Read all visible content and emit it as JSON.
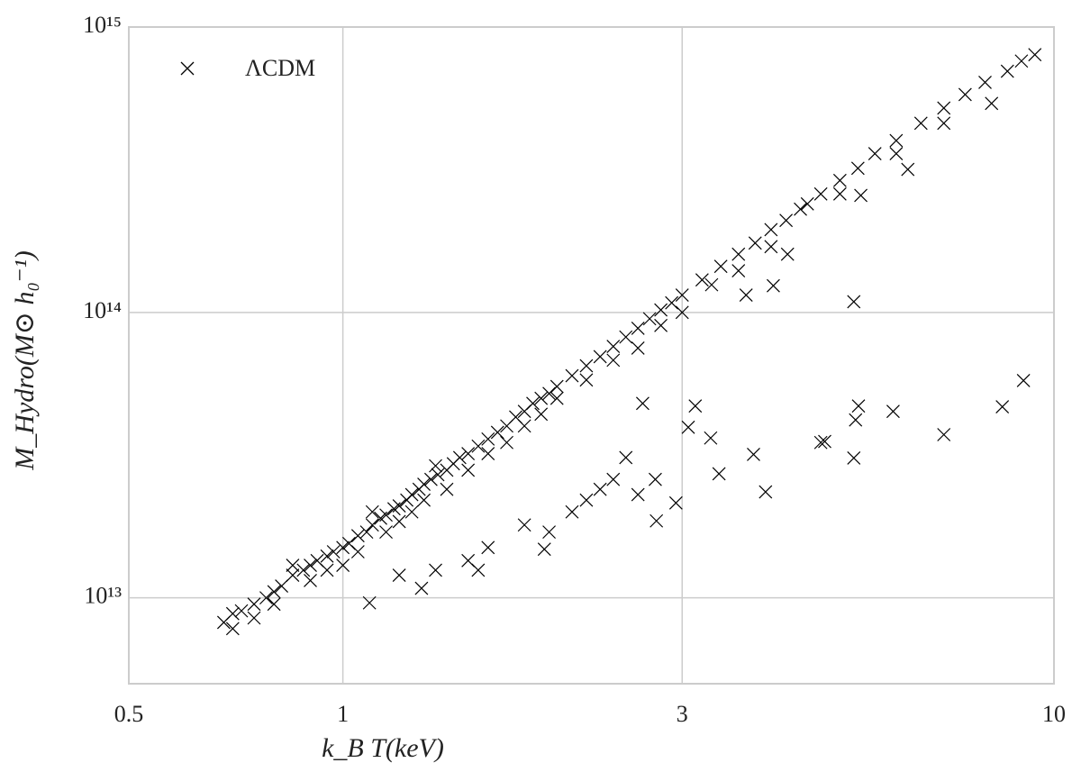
{
  "chart_data": {
    "type": "scatter",
    "x_label": "k_B T(keV)",
    "y_label": "M_Hydro(M⊙ h₀⁻¹)",
    "xscale": "log",
    "yscale": "log",
    "grid": true,
    "legend": "upper left",
    "xlim": [
      0.5,
      10
    ],
    "xticks": [
      0.5,
      1,
      3,
      10
    ],
    "ylim": [
      5000000000000.0,
      1000000000000000.0
    ],
    "yticks": [
      {
        "value": 10000000000000.0,
        "label": "10¹³"
      },
      {
        "value": 100000000000000.0,
        "label": "10¹⁴"
      },
      {
        "value": 1000000000000000.0,
        "label": "10¹⁵"
      }
    ],
    "series": [
      {
        "name": "ΛCDM",
        "color": "#000000",
        "x": [
          0.68,
          0.7,
          0.72,
          0.75,
          0.78,
          0.8,
          0.82,
          0.85,
          0.88,
          0.9,
          0.92,
          0.95,
          0.97,
          1.0,
          1.02,
          1.05,
          1.08,
          1.1,
          1.13,
          1.15,
          1.18,
          1.2,
          1.23,
          1.25,
          1.28,
          1.3,
          1.33,
          1.36,
          1.4,
          1.43,
          1.46,
          1.5,
          1.55,
          1.6,
          1.65,
          1.7,
          1.75,
          1.8,
          1.85,
          1.9,
          1.95,
          2.0,
          2.1,
          2.2,
          2.3,
          2.4,
          2.5,
          2.6,
          2.7,
          2.8,
          2.9,
          3.0,
          3.2,
          3.4,
          3.6,
          3.8,
          4.0,
          4.2,
          4.4,
          4.7,
          5.0,
          5.3,
          5.6,
          6.0,
          6.5,
          7.0,
          7.5,
          8.0,
          8.6,
          9.0,
          9.4,
          0.7,
          0.75,
          0.8,
          0.85,
          0.9,
          0.95,
          1.0,
          1.05,
          1.1,
          1.15,
          1.2,
          1.25,
          1.3,
          1.35,
          1.4,
          1.5,
          1.6,
          1.7,
          1.8,
          1.9,
          2.0,
          2.2,
          2.4,
          2.6,
          2.8,
          3.0,
          3.3,
          3.6,
          4.0,
          4.5,
          5.0,
          6.0,
          7.0,
          1.09,
          1.2,
          1.35,
          1.29,
          1.5,
          1.6,
          1.55,
          1.8,
          1.92,
          1.95,
          2.1,
          2.2,
          2.4,
          2.6,
          2.76,
          2.75,
          2.94,
          2.64,
          3.13,
          3.06,
          3.29,
          3.38,
          3.78,
          3.93,
          4.76,
          4.7,
          5.31,
          5.26,
          5.23,
          5.94,
          7.0,
          8.46,
          9.06,
          5.23,
          4.03,
          3.69,
          4.22,
          5.35,
          6.23,
          8.17,
          2.3,
          2.5
        ],
        "values": [
          8200000000000.0,
          8800000000000.0,
          9000000000000.0,
          9500000000000.0,
          10000000000000.0,
          10500000000000.0,
          11000000000000.0,
          12000000000000.0,
          12500000000000.0,
          13000000000000.0,
          13500000000000.0,
          14000000000000.0,
          14500000000000.0,
          15000000000000.0,
          15500000000000.0,
          16500000000000.0,
          17000000000000.0,
          18000000000000.0,
          19000000000000.0,
          19500000000000.0,
          20500000000000.0,
          21000000000000.0,
          22000000000000.0,
          23000000000000.0,
          24000000000000.0,
          25000000000000.0,
          26000000000000.0,
          27000000000000.0,
          28000000000000.0,
          29500000000000.0,
          31000000000000.0,
          32000000000000.0,
          34000000000000.0,
          36000000000000.0,
          38000000000000.0,
          40000000000000.0,
          43000000000000.0,
          45000000000000.0,
          48000000000000.0,
          50000000000000.0,
          52000000000000.0,
          55000000000000.0,
          60000000000000.0,
          65000000000000.0,
          70000000000000.0,
          76000000000000.0,
          82000000000000.0,
          88000000000000.0,
          95000000000000.0,
          102000000000000.0,
          108000000000000.0,
          115000000000000.0,
          130000000000000.0,
          145000000000000.0,
          160000000000000.0,
          175000000000000.0,
          195000000000000.0,
          210000000000000.0,
          230000000000000.0,
          260000000000000.0,
          290000000000000.0,
          320000000000000.0,
          360000000000000.0,
          400000000000000.0,
          460000000000000.0,
          520000000000000.0,
          580000000000000.0,
          640000000000000.0,
          700000000000000.0,
          760000000000000.0,
          800000000000000.0,
          7800000000000.0,
          8500000000000.0,
          9500000000000.0,
          13000000000000.0,
          11500000000000.0,
          12500000000000.0,
          13000000000000.0,
          14500000000000.0,
          20000000000000.0,
          17000000000000.0,
          18500000000000.0,
          20000000000000.0,
          22000000000000.0,
          29000000000000.0,
          24000000000000.0,
          28000000000000.0,
          32000000000000.0,
          35000000000000.0,
          40000000000000.0,
          44000000000000.0,
          50000000000000.0,
          58000000000000.0,
          68000000000000.0,
          75000000000000.0,
          90000000000000.0,
          100000000000000.0,
          125000000000000.0,
          140000000000000.0,
          170000000000000.0,
          240000000000000.0,
          260000000000000.0,
          360000000000000.0,
          460000000000000.0,
          9600000000000.0,
          12000000000000.0,
          12500000000000.0,
          10800000000000.0,
          13500000000000.0,
          15000000000000.0,
          12500000000000.0,
          18000000000000.0,
          14800000000000.0,
          17000000000000.0,
          20000000000000.0,
          22000000000000.0,
          26000000000000.0,
          23000000000000.0,
          18600000000000.0,
          26000000000000.0,
          21500000000000.0,
          48000000000000.0,
          47000000000000.0,
          39600000000000.0,
          36300000000000.0,
          27200000000000.0,
          31800000000000.0,
          23500000000000.0,
          35300000000000.0,
          35000000000000.0,
          47000000000000.0,
          42000000000000.0,
          30900000000000.0,
          45000000000000.0,
          37300000000000.0,
          46700000000000.0,
          57700000000000.0,
          109000000000000.0,
          124000000000000.0,
          115000000000000.0,
          160000000000000.0,
          257000000000000.0,
          317000000000000.0,
          540000000000000.0,
          24000000000000.0,
          31000000000000.0
        ]
      }
    ]
  }
}
